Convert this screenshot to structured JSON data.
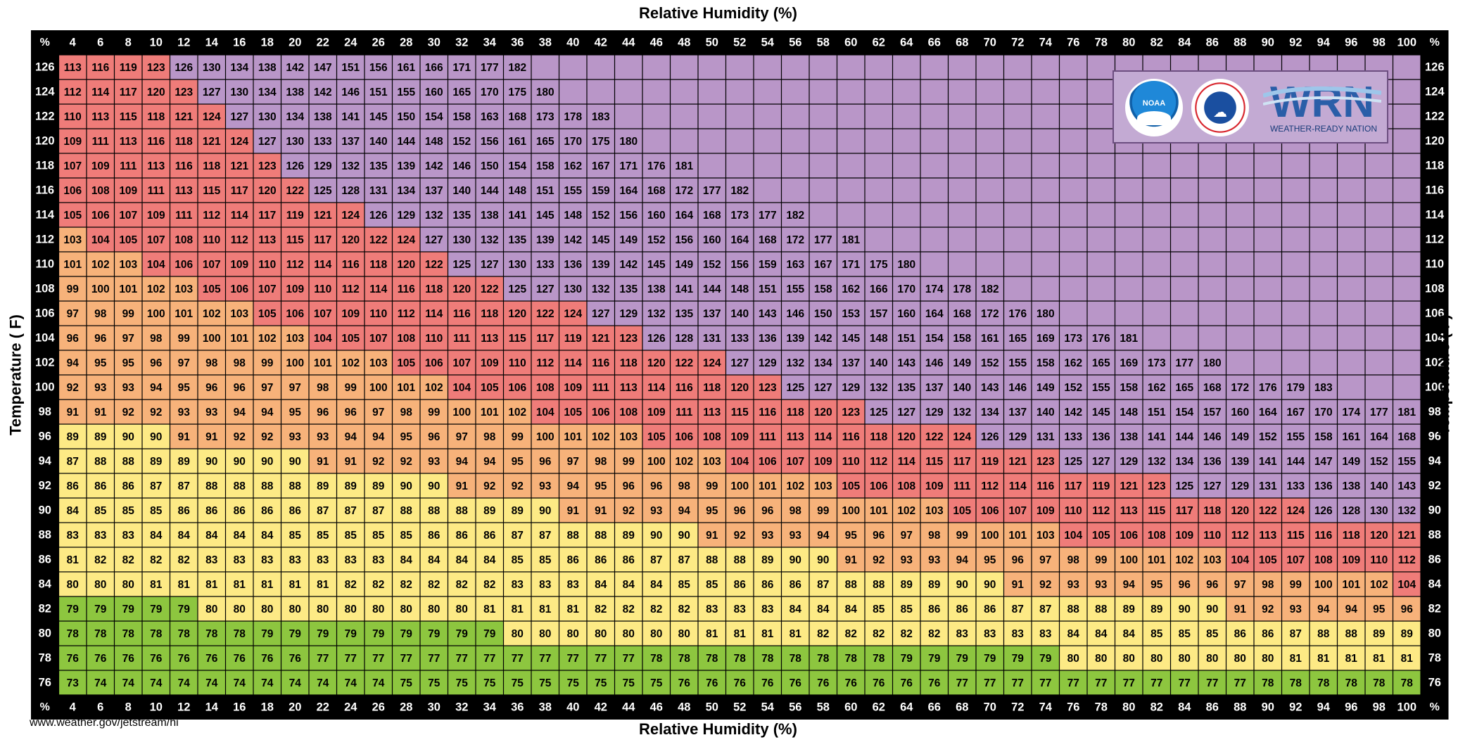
{
  "header": {
    "title_top": "Relative Humidity (%)"
  },
  "footer": {
    "title_bottom": "Relative Humidity (%)",
    "source": "www.weather.gov/jetstream/hi"
  },
  "axes": {
    "y_title": "Temperature ( F)",
    "corner_label": "%"
  },
  "logos": {
    "noaa_text": "NOAA",
    "wrn_mark": "WRN",
    "wrn_text": "WEATHER-READY NATION",
    "icon_names": [
      "noaa-logo-icon",
      "nws-logo-icon",
      "wrn-logo-icon"
    ]
  },
  "colors": {
    "page_background": "#ffffff",
    "header_band": "#000000",
    "header_text": "#ffffff",
    "grid_line": "#000000",
    "empty_cell": "#b996c8",
    "logo_panel": "#c3aad3",
    "category_colors": {
      "below_80": "#8dc63f",
      "80_to_90": "#fdea85",
      "91_to_103": "#f7b27a",
      "104_to_124": "#ef7c79",
      "125_plus": "#b996c8"
    }
  },
  "chart_data": {
    "type": "heatmap",
    "title": "",
    "xlabel": "Relative Humidity (%)",
    "ylabel": "Temperature ( F)",
    "x": [
      4,
      6,
      8,
      10,
      12,
      14,
      16,
      18,
      20,
      22,
      24,
      26,
      28,
      30,
      32,
      34,
      36,
      38,
      40,
      42,
      44,
      46,
      48,
      50,
      52,
      54,
      56,
      58,
      60,
      62,
      64,
      66,
      68,
      70,
      72,
      74,
      76,
      78,
      80,
      82,
      84,
      86,
      88,
      90,
      92,
      94,
      96,
      98,
      100
    ],
    "y": [
      126,
      124,
      122,
      120,
      118,
      116,
      114,
      112,
      110,
      108,
      106,
      104,
      102,
      100,
      98,
      96,
      94,
      92,
      90,
      88,
      86,
      84,
      82,
      80,
      78,
      76
    ],
    "z": [
      [
        113,
        116,
        119,
        123,
        126,
        130,
        134,
        138,
        142,
        147,
        151,
        156,
        161,
        166,
        171,
        177,
        182
      ],
      [
        112,
        114,
        117,
        120,
        123,
        127,
        130,
        134,
        138,
        142,
        146,
        151,
        155,
        160,
        165,
        170,
        175,
        180
      ],
      [
        110,
        113,
        115,
        118,
        121,
        124,
        127,
        130,
        134,
        138,
        141,
        145,
        150,
        154,
        158,
        163,
        168,
        173,
        178,
        183
      ],
      [
        109,
        111,
        113,
        116,
        118,
        121,
        124,
        127,
        130,
        133,
        137,
        140,
        144,
        148,
        152,
        156,
        161,
        165,
        170,
        175,
        180
      ],
      [
        107,
        109,
        111,
        113,
        116,
        118,
        121,
        123,
        126,
        129,
        132,
        135,
        139,
        142,
        146,
        150,
        154,
        158,
        162,
        167,
        171,
        176,
        181
      ],
      [
        106,
        108,
        109,
        111,
        113,
        115,
        117,
        120,
        122,
        125,
        128,
        131,
        134,
        137,
        140,
        144,
        148,
        151,
        155,
        159,
        164,
        168,
        172,
        177,
        182
      ],
      [
        105,
        106,
        107,
        109,
        111,
        112,
        114,
        117,
        119,
        121,
        124,
        126,
        129,
        132,
        135,
        138,
        141,
        145,
        148,
        152,
        156,
        160,
        164,
        168,
        173,
        177,
        182
      ],
      [
        103,
        104,
        105,
        107,
        108,
        110,
        112,
        113,
        115,
        117,
        120,
        122,
        124,
        127,
        130,
        132,
        135,
        139,
        142,
        145,
        149,
        152,
        156,
        160,
        164,
        168,
        172,
        177,
        181
      ],
      [
        101,
        102,
        103,
        104,
        106,
        107,
        109,
        110,
        112,
        114,
        116,
        118,
        120,
        122,
        125,
        127,
        130,
        133,
        136,
        139,
        142,
        145,
        149,
        152,
        156,
        159,
        163,
        167,
        171,
        175,
        180
      ],
      [
        99,
        100,
        101,
        102,
        103,
        105,
        106,
        107,
        109,
        110,
        112,
        114,
        116,
        118,
        120,
        122,
        125,
        127,
        130,
        132,
        135,
        138,
        141,
        144,
        148,
        151,
        155,
        158,
        162,
        166,
        170,
        174,
        178,
        182
      ],
      [
        97,
        98,
        99,
        100,
        101,
        102,
        103,
        105,
        106,
        107,
        109,
        110,
        112,
        114,
        116,
        118,
        120,
        122,
        124,
        127,
        129,
        132,
        135,
        137,
        140,
        143,
        146,
        150,
        153,
        157,
        160,
        164,
        168,
        172,
        176,
        180
      ],
      [
        96,
        96,
        97,
        98,
        99,
        100,
        101,
        102,
        103,
        104,
        105,
        107,
        108,
        110,
        111,
        113,
        115,
        117,
        119,
        121,
        123,
        126,
        128,
        131,
        133,
        136,
        139,
        142,
        145,
        148,
        151,
        154,
        158,
        161,
        165,
        169,
        173,
        176,
        181
      ],
      [
        94,
        95,
        95,
        96,
        97,
        98,
        98,
        99,
        100,
        101,
        102,
        103,
        105,
        106,
        107,
        109,
        110,
        112,
        114,
        116,
        118,
        120,
        122,
        124,
        127,
        129,
        132,
        134,
        137,
        140,
        143,
        146,
        149,
        152,
        155,
        158,
        162,
        165,
        169,
        173,
        177,
        180
      ],
      [
        92,
        93,
        93,
        94,
        95,
        96,
        96,
        97,
        97,
        98,
        99,
        100,
        101,
        102,
        104,
        105,
        106,
        108,
        109,
        111,
        113,
        114,
        116,
        118,
        120,
        123,
        125,
        127,
        129,
        132,
        135,
        137,
        140,
        143,
        146,
        149,
        152,
        155,
        158,
        162,
        165,
        168,
        172,
        176,
        179,
        183
      ],
      [
        91,
        91,
        92,
        92,
        93,
        93,
        94,
        94,
        95,
        96,
        96,
        97,
        98,
        99,
        100,
        101,
        102,
        104,
        105,
        106,
        108,
        109,
        111,
        113,
        115,
        116,
        118,
        120,
        123,
        125,
        127,
        129,
        132,
        134,
        137,
        140,
        142,
        145,
        148,
        151,
        154,
        157,
        160,
        164,
        167,
        170,
        174,
        177,
        181
      ],
      [
        89,
        89,
        90,
        90,
        91,
        91,
        92,
        92,
        93,
        93,
        94,
        94,
        95,
        96,
        97,
        98,
        99,
        100,
        101,
        102,
        103,
        105,
        106,
        108,
        109,
        111,
        113,
        114,
        116,
        118,
        120,
        122,
        124,
        126,
        129,
        131,
        133,
        136,
        138,
        141,
        144,
        146,
        149,
        152,
        155,
        158,
        161,
        164,
        168
      ],
      [
        87,
        88,
        88,
        89,
        89,
        90,
        90,
        90,
        90,
        91,
        91,
        92,
        92,
        93,
        94,
        94,
        95,
        96,
        97,
        98,
        99,
        100,
        102,
        103,
        104,
        106,
        107,
        109,
        110,
        112,
        114,
        115,
        117,
        119,
        121,
        123,
        125,
        127,
        129,
        132,
        134,
        136,
        139,
        141,
        144,
        147,
        149,
        152,
        155
      ],
      [
        86,
        86,
        86,
        87,
        87,
        88,
        88,
        88,
        88,
        89,
        89,
        89,
        90,
        90,
        91,
        92,
        92,
        93,
        94,
        95,
        96,
        96,
        98,
        99,
        100,
        101,
        102,
        103,
        105,
        106,
        108,
        109,
        111,
        112,
        114,
        116,
        117,
        119,
        121,
        123,
        125,
        127,
        129,
        131,
        133,
        136,
        138,
        140,
        143
      ],
      [
        84,
        85,
        85,
        85,
        86,
        86,
        86,
        86,
        86,
        87,
        87,
        87,
        88,
        88,
        88,
        89,
        89,
        90,
        91,
        91,
        92,
        93,
        94,
        95,
        96,
        96,
        98,
        99,
        100,
        101,
        102,
        103,
        105,
        106,
        107,
        109,
        110,
        112,
        113,
        115,
        117,
        118,
        120,
        122,
        124,
        126,
        128,
        130,
        132
      ],
      [
        83,
        83,
        83,
        84,
        84,
        84,
        84,
        84,
        85,
        85,
        85,
        85,
        85,
        86,
        86,
        86,
        87,
        87,
        88,
        88,
        89,
        90,
        90,
        91,
        92,
        93,
        93,
        94,
        95,
        96,
        97,
        98,
        99,
        100,
        101,
        103,
        104,
        105,
        106,
        108,
        109,
        110,
        112,
        113,
        115,
        116,
        118,
        120,
        121
      ],
      [
        81,
        82,
        82,
        82,
        82,
        83,
        83,
        83,
        83,
        83,
        83,
        83,
        84,
        84,
        84,
        84,
        85,
        85,
        86,
        86,
        86,
        87,
        87,
        88,
        88,
        89,
        90,
        90,
        91,
        92,
        93,
        93,
        94,
        95,
        96,
        97,
        98,
        99,
        100,
        101,
        102,
        103,
        104,
        105,
        107,
        108,
        109,
        110,
        112
      ],
      [
        80,
        80,
        80,
        81,
        81,
        81,
        81,
        81,
        81,
        81,
        82,
        82,
        82,
        82,
        82,
        82,
        83,
        83,
        83,
        84,
        84,
        84,
        85,
        85,
        86,
        86,
        86,
        87,
        88,
        88,
        89,
        89,
        90,
        90,
        91,
        92,
        93,
        93,
        94,
        95,
        96,
        96,
        97,
        98,
        99,
        100,
        101,
        102,
        104
      ],
      [
        79,
        79,
        79,
        79,
        79,
        80,
        80,
        80,
        80,
        80,
        80,
        80,
        80,
        80,
        80,
        81,
        81,
        81,
        81,
        82,
        82,
        82,
        82,
        83,
        83,
        83,
        84,
        84,
        84,
        85,
        85,
        86,
        86,
        86,
        87,
        87,
        88,
        88,
        89,
        89,
        90,
        90,
        91,
        92,
        93,
        94,
        94,
        95,
        96
      ],
      [
        78,
        78,
        78,
        78,
        78,
        78,
        78,
        79,
        79,
        79,
        79,
        79,
        79,
        79,
        79,
        79,
        80,
        80,
        80,
        80,
        80,
        80,
        80,
        81,
        81,
        81,
        81,
        82,
        82,
        82,
        82,
        82,
        83,
        83,
        83,
        83,
        84,
        84,
        84,
        85,
        85,
        85,
        86,
        86,
        87,
        88,
        88,
        89,
        89
      ],
      [
        76,
        76,
        76,
        76,
        76,
        76,
        76,
        76,
        76,
        77,
        77,
        77,
        77,
        77,
        77,
        77,
        77,
        77,
        77,
        77,
        77,
        78,
        78,
        78,
        78,
        78,
        78,
        78,
        78,
        78,
        79,
        79,
        79,
        79,
        79,
        79,
        80,
        80,
        80,
        80,
        80,
        80,
        80,
        80,
        81,
        81,
        81,
        81,
        81
      ],
      [
        73,
        74,
        74,
        74,
        74,
        74,
        74,
        74,
        74,
        74,
        74,
        74,
        75,
        75,
        75,
        75,
        75,
        75,
        75,
        75,
        75,
        75,
        76,
        76,
        76,
        76,
        76,
        76,
        76,
        76,
        76,
        76,
        77,
        77,
        77,
        77,
        77,
        77,
        77,
        77,
        77,
        77,
        77,
        78,
        78,
        78,
        78,
        78,
        78
      ]
    ],
    "color_scale": [
      {
        "max": 79,
        "color": "#8dc63f"
      },
      {
        "max": 90,
        "color": "#fdea85"
      },
      {
        "max": 103,
        "color": "#f7b27a"
      },
      {
        "max": 124,
        "color": "#ef7c79"
      },
      {
        "max": 999,
        "color": "#b996c8"
      }
    ],
    "legend": "none",
    "grid": true
  }
}
